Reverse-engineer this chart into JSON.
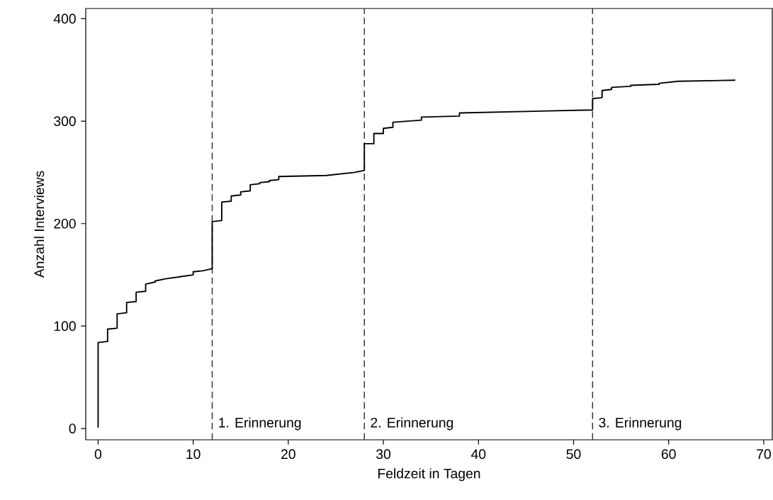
{
  "chart_data": {
    "type": "line",
    "xlabel": "Feldzeit in Tagen",
    "ylabel": "Anzahl Interviews",
    "series": [
      {
        "color": "#000000",
        "line_style": "solid",
        "marker": "none",
        "x": [
          0,
          0,
          1,
          1,
          2,
          2,
          3,
          3,
          4,
          4,
          5,
          5,
          6,
          6,
          7,
          10,
          10,
          11,
          12,
          12,
          13,
          13,
          14,
          14,
          15,
          15,
          16,
          16,
          17,
          17,
          18,
          18,
          19,
          19,
          24,
          27,
          28,
          28,
          29,
          29,
          30,
          30,
          31,
          31,
          34,
          34,
          38,
          38,
          52,
          52,
          53,
          53,
          54,
          54,
          56,
          56,
          59,
          59,
          61,
          67
        ],
        "values": [
          1,
          84,
          85,
          97,
          98,
          112,
          113,
          123,
          124,
          133,
          134,
          141,
          143,
          144,
          146,
          150,
          153,
          154,
          156,
          202,
          203,
          221,
          222,
          227,
          228,
          231,
          232,
          238,
          239,
          240,
          241,
          242,
          243,
          246,
          247,
          250,
          252,
          278,
          278,
          288,
          288,
          293,
          294,
          299,
          301,
          304,
          305,
          308,
          311,
          322,
          323,
          330,
          331,
          333,
          334,
          335,
          336,
          337,
          339,
          340
        ]
      }
    ],
    "xlim": [
      -1.3,
      70.9
    ],
    "ylim": [
      -11,
      410
    ],
    "xticks": [
      0,
      10,
      20,
      30,
      40,
      50,
      60,
      70
    ],
    "yticks": [
      0,
      100,
      200,
      300,
      400
    ],
    "grid": false,
    "ref_lines": [
      {
        "axis": "x",
        "value": 12,
        "label": "1. Erinnerung",
        "color": "#333333",
        "line_style": "dashed"
      },
      {
        "axis": "x",
        "value": 28,
        "label": "2. Erinnerung",
        "color": "#333333",
        "line_style": "dashed"
      },
      {
        "axis": "x",
        "value": 52,
        "label": "3. Erinnerung",
        "color": "#333333",
        "line_style": "dashed"
      }
    ]
  }
}
